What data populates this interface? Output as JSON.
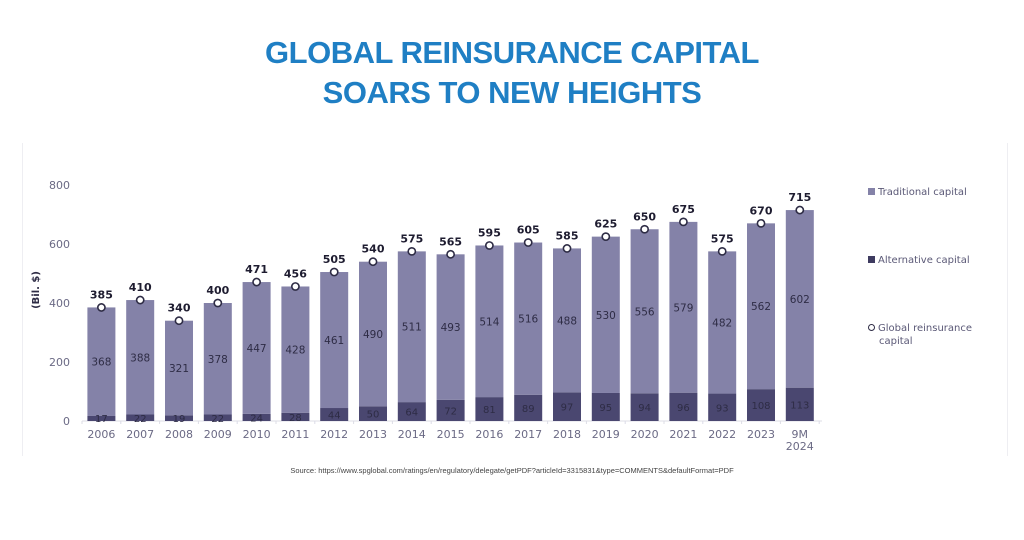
{
  "header": {
    "title_line1": "GLOBAL REINSURANCE CAPITAL",
    "title_line2": "SOARS TO NEW HEIGHTS"
  },
  "source": "Source: https://www.spglobal.com/ratings/en/regulatory/delegate/getPDF?articleId=3315831&type=COMMENTS&defaultFormat=PDF",
  "legend": {
    "traditional": "Traditional capital",
    "alternative": "Alternative capital",
    "global_line1": "Global reinsurance",
    "global_line2": "capital"
  },
  "colors": {
    "title": "#1f7fc4",
    "traditional": "#8482a8",
    "alternative": "#4a4770",
    "marker_stroke": "#2e2c45"
  },
  "chart_data": {
    "type": "bar",
    "stacked": true,
    "title": "GLOBAL REINSURANCE CAPITAL SOARS TO NEW HEIGHTS",
    "xlabel": "",
    "ylabel": "(Bil. $)",
    "ylim": [
      0,
      800
    ],
    "yticks": [
      0,
      200,
      400,
      600,
      800
    ],
    "grid": false,
    "legend_position": "right",
    "categories": [
      "2006",
      "2007",
      "2008",
      "2009",
      "2010",
      "2011",
      "2012",
      "2013",
      "2014",
      "2015",
      "2016",
      "2017",
      "2018",
      "2019",
      "2020",
      "2021",
      "2022",
      "2023",
      "9M 2024"
    ],
    "series": [
      {
        "name": "Alternative capital",
        "values": [
          17,
          22,
          19,
          22,
          24,
          28,
          44,
          50,
          64,
          72,
          81,
          89,
          97,
          95,
          94,
          96,
          93,
          108,
          113
        ]
      },
      {
        "name": "Traditional capital",
        "values": [
          368,
          388,
          321,
          378,
          447,
          428,
          461,
          490,
          511,
          493,
          514,
          516,
          488,
          530,
          556,
          579,
          482,
          562,
          602
        ]
      },
      {
        "name": "Global reinsurance capital",
        "type": "marker",
        "values": [
          385,
          410,
          340,
          400,
          471,
          456,
          505,
          540,
          575,
          565,
          595,
          605,
          585,
          625,
          650,
          675,
          575,
          670,
          715
        ]
      }
    ]
  }
}
